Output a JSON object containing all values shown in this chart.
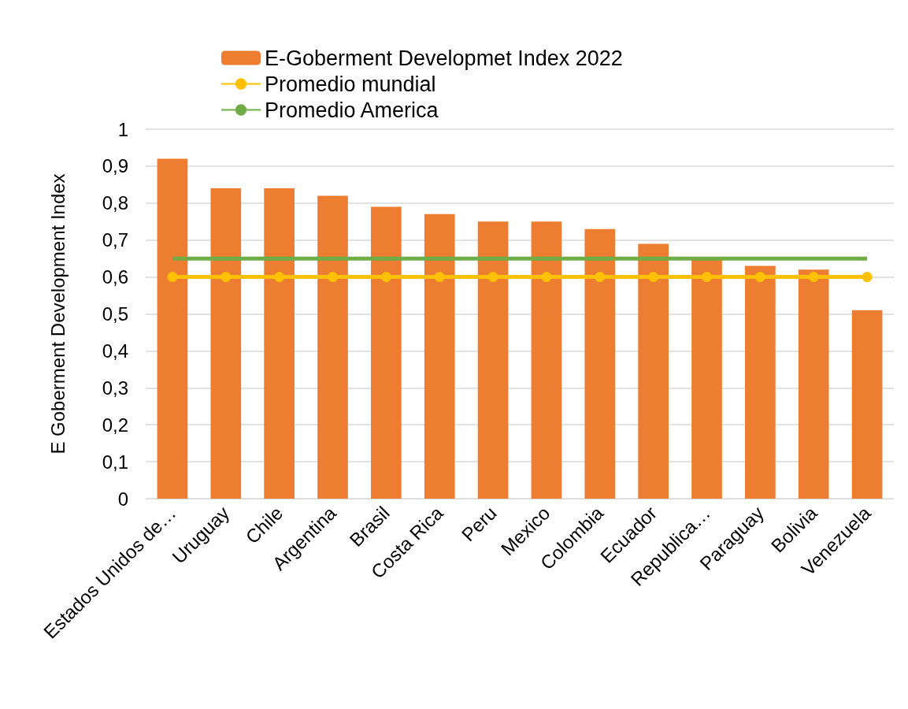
{
  "chart_data": {
    "type": "bar",
    "ylabel": "E Goberment Development Index",
    "categories": [
      "Estados Unidos de…",
      "Uruguay",
      "Chile",
      "Argentina",
      "Brasil",
      "Costa Rica",
      "Peru",
      "Mexico",
      "Colombia",
      "Ecuador",
      "Republica…",
      "Paraguay",
      "Bolivia",
      "Venezuela"
    ],
    "series": [
      {
        "name": "E-Goberment Developmet Index 2022",
        "color": "#ed7d31",
        "values": [
          0.92,
          0.84,
          0.84,
          0.82,
          0.79,
          0.77,
          0.75,
          0.75,
          0.73,
          0.69,
          0.65,
          0.63,
          0.62,
          0.51
        ]
      },
      {
        "name": "Promedio mundial",
        "type": "line",
        "color": "#ffc000",
        "marker": "circle",
        "values": [
          0.6,
          0.6,
          0.6,
          0.6,
          0.6,
          0.6,
          0.6,
          0.6,
          0.6,
          0.6,
          0.6,
          0.6,
          0.6,
          0.6
        ]
      },
      {
        "name": "Promedio America",
        "type": "line",
        "color": "#70ad47",
        "marker": "none",
        "values": [
          0.65,
          0.65,
          0.65,
          0.65,
          0.65,
          0.65,
          0.65,
          0.65,
          0.65,
          0.65,
          0.65,
          0.65,
          0.65,
          0.65
        ]
      }
    ],
    "ylim": [
      0,
      1
    ],
    "yticks": [
      {
        "value": 0,
        "label": "0"
      },
      {
        "value": 0.1,
        "label": "0,1"
      },
      {
        "value": 0.2,
        "label": "0,2"
      },
      {
        "value": 0.3,
        "label": "0,3"
      },
      {
        "value": 0.4,
        "label": "0,4"
      },
      {
        "value": 0.5,
        "label": "0,5"
      },
      {
        "value": 0.6,
        "label": "0,6"
      },
      {
        "value": 0.7,
        "label": "0,7"
      },
      {
        "value": 0.8,
        "label": "0,8"
      },
      {
        "value": 0.9,
        "label": "0,9"
      },
      {
        "value": 1,
        "label": "1"
      }
    ],
    "grid": "y",
    "legend": "top"
  }
}
